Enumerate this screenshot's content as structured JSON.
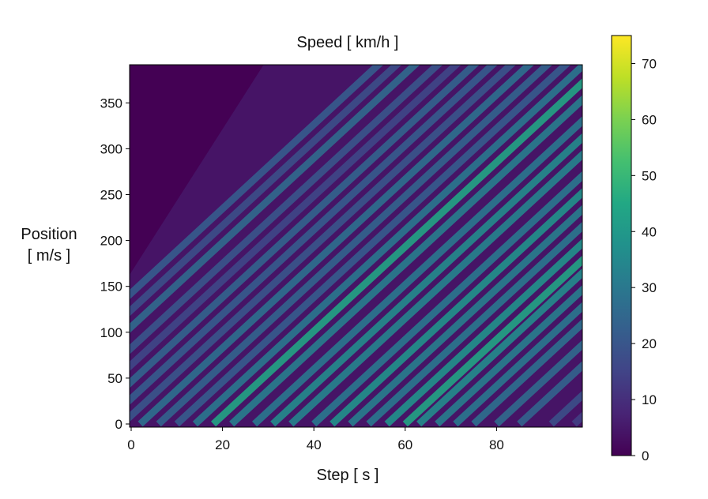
{
  "chart_data": {
    "type": "heatmap",
    "title": "Speed [ km/h ]",
    "xlabel": "Step [ s ]",
    "ylabel": [
      "Position",
      "[ m/s ]"
    ],
    "xlim": [
      0,
      99
    ],
    "ylim": [
      0,
      395
    ],
    "x_ticks": [
      0,
      20,
      40,
      60,
      80
    ],
    "y_ticks": [
      0,
      50,
      100,
      150,
      200,
      250,
      300,
      350
    ],
    "colorbar": {
      "colormap": "viridis",
      "range": [
        0,
        75
      ],
      "ticks": [
        0,
        10,
        20,
        30,
        40,
        50,
        60,
        70
      ]
    },
    "description_of_values": "Diagonal speed streaks (traffic waves) moving upward with slope about 4.6 m per step; empty region (0 km/h) above the line position = 4.5 * (step - 10) + 150 at the upper left.",
    "streaks": [
      {
        "x0": -31,
        "value": 22
      },
      {
        "x0": -27,
        "value": 18
      },
      {
        "x0": -23,
        "value": 26
      },
      {
        "x0": -18,
        "value": 20
      },
      {
        "x0": -14,
        "value": 16
      },
      {
        "x0": -10,
        "value": 24
      },
      {
        "x0": -6,
        "value": 22
      },
      {
        "x0": -2,
        "value": 20
      },
      {
        "x0": 2,
        "value": 28
      },
      {
        "x0": 6,
        "value": 24
      },
      {
        "x0": 10,
        "value": 22
      },
      {
        "x0": 14,
        "value": 30
      },
      {
        "x0": 18,
        "value": 44
      },
      {
        "x0": 22,
        "value": 32
      },
      {
        "x0": 27,
        "value": 30
      },
      {
        "x0": 31,
        "value": 36
      },
      {
        "x0": 35,
        "value": 34
      },
      {
        "x0": 40,
        "value": 30
      },
      {
        "x0": 44,
        "value": 38
      },
      {
        "x0": 48,
        "value": 32
      },
      {
        "x0": 52,
        "value": 30
      },
      {
        "x0": 56,
        "value": 38
      },
      {
        "x0": 60,
        "value": 44
      },
      {
        "x0": 63,
        "value": 36
      },
      {
        "x0": 67,
        "value": 32
      },
      {
        "x0": 71,
        "value": 30
      },
      {
        "x0": 75,
        "value": 28
      },
      {
        "x0": 80,
        "value": 26
      },
      {
        "x0": 85,
        "value": 24
      },
      {
        "x0": 92,
        "value": 18
      },
      {
        "x0": 97,
        "value": 14
      }
    ]
  }
}
